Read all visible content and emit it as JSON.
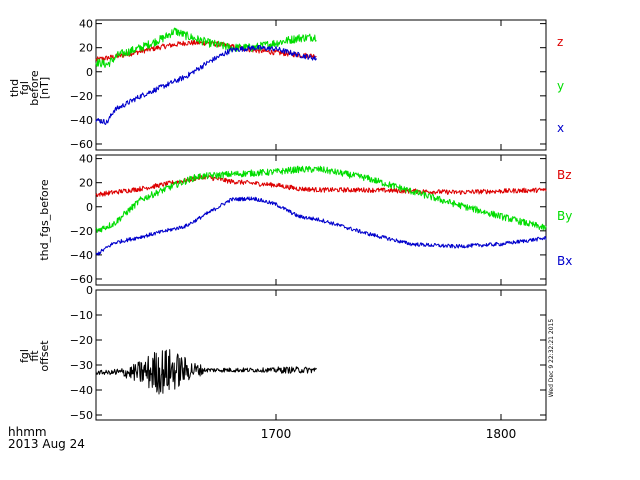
{
  "chart_data": {
    "type": "line",
    "x_axis": {
      "xlim": [
        1620,
        1820
      ],
      "tick_values": [
        1700,
        1800
      ],
      "tick_labels": [
        "1700",
        "1800"
      ],
      "label": "hhmm",
      "date": "2013 Aug 24"
    },
    "side_label": "Wed Dec  9 22:32:21 2015",
    "panels": [
      {
        "id": "p1",
        "ylabel": [
          "thd",
          "fgl",
          "before",
          "[nT]"
        ],
        "ylim": [
          -65,
          43
        ],
        "yticks": [
          40,
          20,
          0,
          -20,
          -40,
          -60
        ],
        "ytick_labels": [
          "40",
          "20",
          "0",
          "−20",
          "−40",
          "−60"
        ],
        "series": [
          {
            "name": "z",
            "color": "#dd0000",
            "noise": 2.2,
            "x": [
              1620,
              1630,
              1640,
              1650,
              1660,
              1670,
              1680,
              1690,
              1700,
              1710,
              1718
            ],
            "y": [
              10,
              13,
              17,
              21,
              24,
              24,
              21,
              18,
              16,
              14,
              13
            ]
          },
          {
            "name": "y",
            "color": "#00dd00",
            "noise": 3.5,
            "x": [
              1620,
              1625,
              1630,
              1640,
              1650,
              1655,
              1660,
              1670,
              1680,
              1690,
              1700,
              1710,
              1718
            ],
            "y": [
              8,
              6,
              14,
              20,
              28,
              34,
              30,
              24,
              20,
              20,
              24,
              28,
              29
            ]
          },
          {
            "name": "x",
            "color": "#0000cc",
            "noise": 2.2,
            "x": [
              1620,
              1625,
              1628,
              1632,
              1640,
              1650,
              1660,
              1670,
              1680,
              1690,
              1700,
              1710,
              1718
            ],
            "y": [
              -40,
              -42,
              -32,
              -28,
              -20,
              -12,
              -4,
              8,
              18,
              20,
              19,
              14,
              11
            ]
          }
        ]
      },
      {
        "id": "p2",
        "ylabel": [
          "thd_fgs_before"
        ],
        "ylim": [
          -65,
          43
        ],
        "yticks": [
          40,
          20,
          0,
          -20,
          -40,
          -60
        ],
        "ytick_labels": [
          "40",
          "20",
          "0",
          "−20",
          "−40",
          "−60"
        ],
        "series": [
          {
            "name": "Bz",
            "color": "#dd0000",
            "noise": 2.0,
            "x": [
              1620,
              1640,
              1660,
              1668,
              1680,
              1700,
              1710,
              1720,
              1740,
              1760,
              1780,
              1800,
              1820
            ],
            "y": [
              10,
              15,
              22,
              25,
              21,
              18,
              15,
              14,
              14,
              13,
              12,
              13,
              14
            ]
          },
          {
            "name": "By",
            "color": "#00dd00",
            "noise": 2.8,
            "x": [
              1620,
              1628,
              1640,
              1655,
              1665,
              1680,
              1700,
              1710,
              1720,
              1740,
              1760,
              1780,
              1800,
              1820
            ],
            "y": [
              -20,
              -14,
              6,
              18,
              25,
              27,
              29,
              31,
              31,
              24,
              13,
              2,
              -8,
              -18
            ]
          },
          {
            "name": "Bx",
            "color": "#0000cc",
            "noise": 1.6,
            "x": [
              1620,
              1628,
              1640,
              1660,
              1670,
              1680,
              1690,
              1700,
              1710,
              1720,
              1740,
              1760,
              1780,
              1800,
              1820
            ],
            "y": [
              -40,
              -30,
              -25,
              -16,
              -5,
              6,
              7,
              2,
              -8,
              -11,
              -22,
              -31,
              -33,
              -31,
              -26
            ]
          }
        ]
      },
      {
        "id": "p3",
        "ylabel": [
          "fgl",
          "fit",
          "offset"
        ],
        "ylim": [
          -52,
          0
        ],
        "yticks": [
          0,
          -10,
          -20,
          -30,
          -40,
          -50
        ],
        "ytick_labels": [
          "0",
          "−10",
          "−20",
          "−30",
          "−40",
          "−50"
        ],
        "series": [
          {
            "name": "offset",
            "color": "#000000",
            "noise": 1.2,
            "x": [
              1620,
              1640,
              1660,
              1680,
              1700,
              1718
            ],
            "y": [
              -33,
              -33,
              -32,
              -32,
              -32,
              -32
            ]
          }
        ]
      }
    ]
  }
}
